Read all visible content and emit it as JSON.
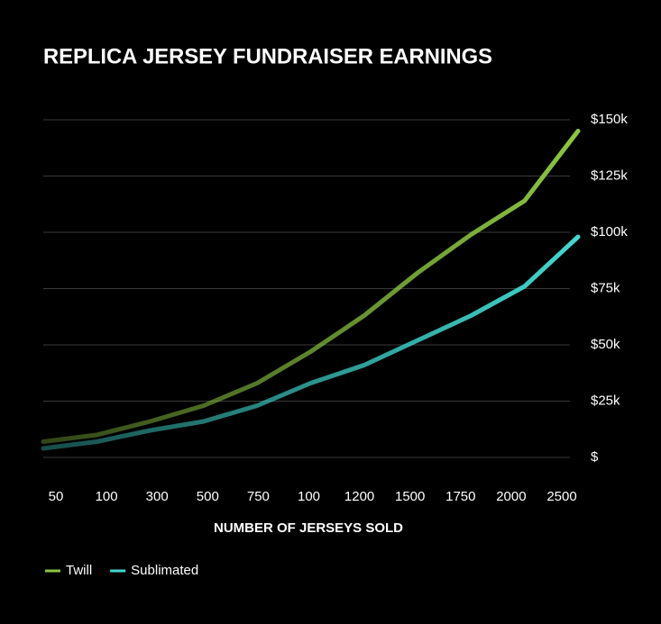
{
  "chart_data": {
    "type": "line",
    "title": "REPLICA JERSEY FUNDRAISER EARNINGS",
    "x_label": "NUMBER OF JERSEYS SOLD",
    "categories": [
      "50",
      "100",
      "300",
      "500",
      "750",
      "100",
      "1200",
      "1500",
      "1750",
      "2000",
      "2500"
    ],
    "series": [
      {
        "name": "Twill",
        "color": "#8cc63f",
        "values": [
          7000,
          10000,
          16000,
          23000,
          33000,
          47000,
          63000,
          82000,
          99000,
          114000,
          145000
        ]
      },
      {
        "name": "Sublimated",
        "color": "#40d9d0",
        "values": [
          4000,
          7000,
          12000,
          16000,
          23000,
          33000,
          41000,
          52000,
          63000,
          76000,
          98000
        ]
      }
    ],
    "ylim": [
      0,
      150000
    ],
    "yticks": [
      {
        "value": 0,
        "label": "$"
      },
      {
        "value": 25000,
        "label": "$25k"
      },
      {
        "value": 50000,
        "label": "$50k"
      },
      {
        "value": 75000,
        "label": "$75k"
      },
      {
        "value": 100000,
        "label": "$100k"
      },
      {
        "value": 125000,
        "label": "$125k"
      },
      {
        "value": 150000,
        "label": "$150k"
      }
    ],
    "grid": true,
    "legend": "bottom-left"
  }
}
